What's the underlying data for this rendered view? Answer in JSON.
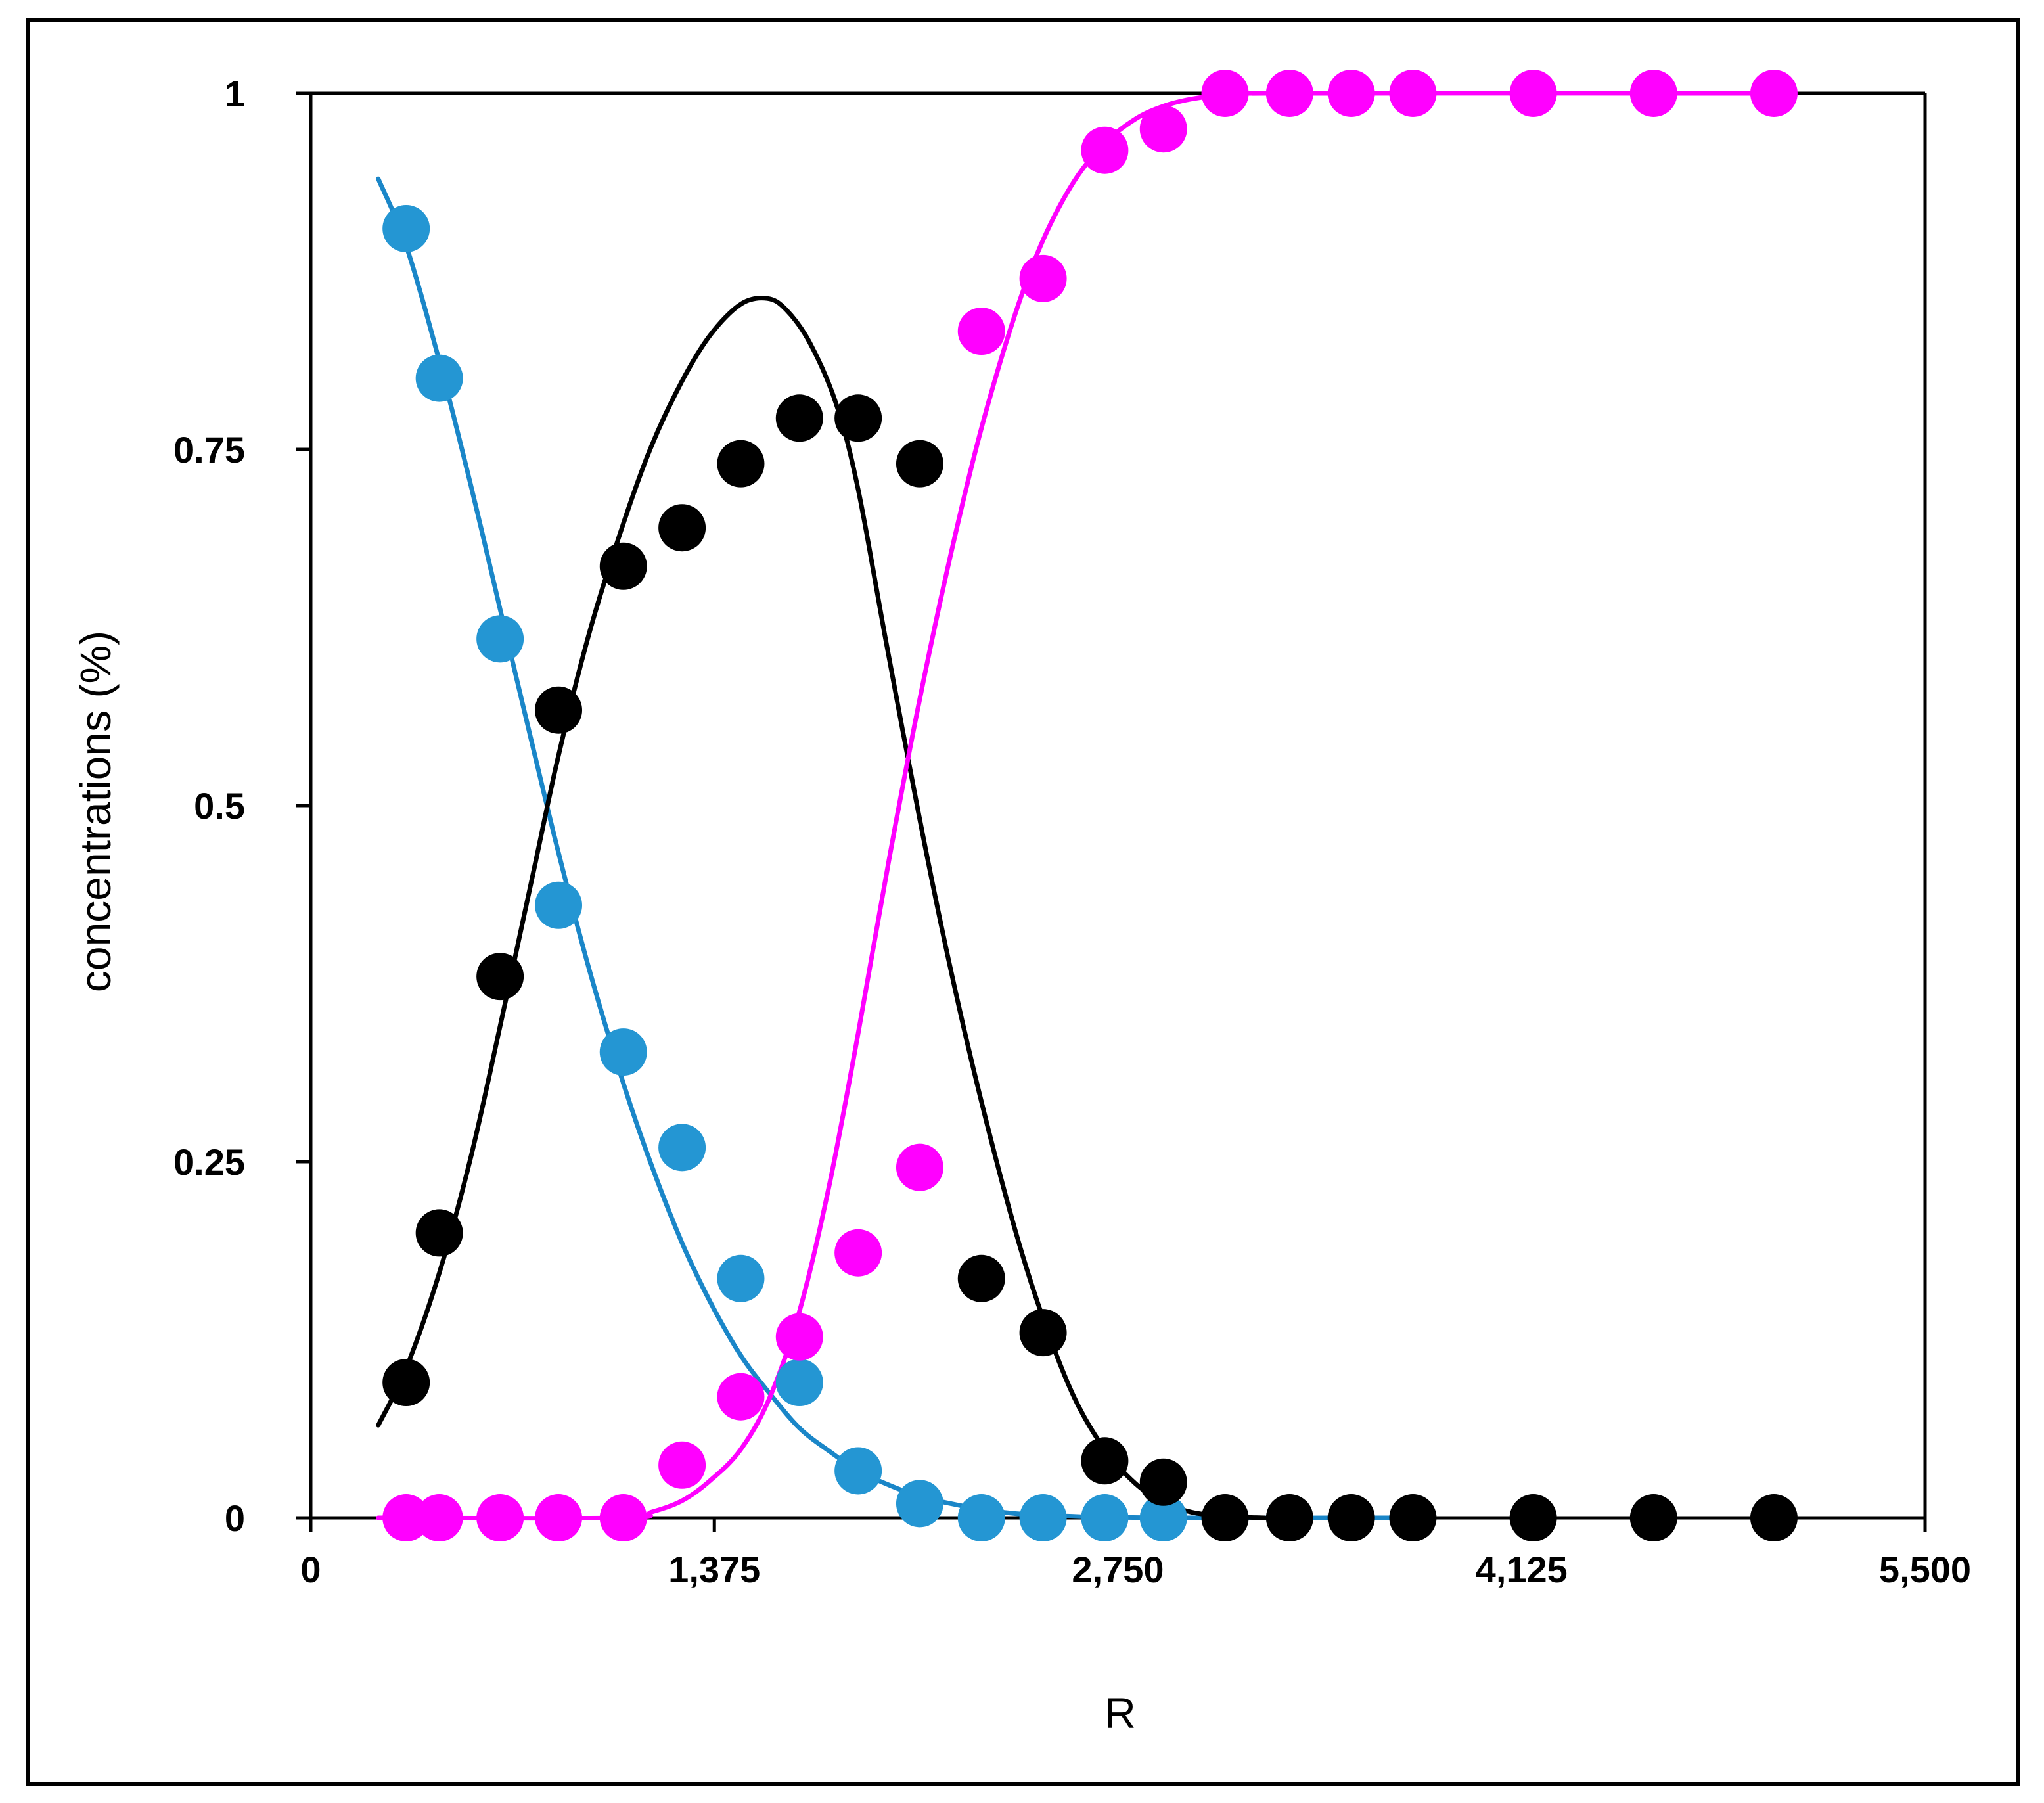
{
  "chart_data": {
    "type": "scatter",
    "title": "",
    "xlabel": "R",
    "ylabel": "concentrations (%)",
    "xlim": [
      0,
      5500
    ],
    "ylim": [
      0,
      1
    ],
    "x_ticks": [
      0,
      1375,
      2750,
      4125,
      5500
    ],
    "x_tick_labels": [
      "0",
      "1,375",
      "2,750",
      "4,125",
      "5,500"
    ],
    "y_ticks": [
      0,
      0.25,
      0.5,
      0.75,
      1
    ],
    "y_tick_labels": [
      "0",
      "0.25",
      "0.5",
      "0.75",
      "1"
    ],
    "grid": false,
    "series": [
      {
        "color": "#2496d3",
        "line_color": "#1a86c8",
        "points": [
          [
            325,
            0.905
          ],
          [
            438,
            0.8
          ],
          [
            645,
            0.617
          ],
          [
            844,
            0.43
          ],
          [
            1065,
            0.327
          ],
          [
            1265,
            0.26
          ],
          [
            1465,
            0.168
          ],
          [
            1665,
            0.095
          ],
          [
            1865,
            0.033
          ],
          [
            2075,
            0.01
          ],
          [
            2285,
            0
          ],
          [
            2495,
            0
          ],
          [
            2705,
            0
          ],
          [
            2905,
            0
          ]
        ],
        "curve": [
          [
            230,
            0.94
          ],
          [
            325,
            0.893
          ],
          [
            438,
            0.812
          ],
          [
            545,
            0.725
          ],
          [
            645,
            0.638
          ],
          [
            750,
            0.547
          ],
          [
            844,
            0.467
          ],
          [
            950,
            0.384
          ],
          [
            1065,
            0.305
          ],
          [
            1160,
            0.248
          ],
          [
            1265,
            0.193
          ],
          [
            1360,
            0.152
          ],
          [
            1465,
            0.114
          ],
          [
            1565,
            0.087
          ],
          [
            1665,
            0.063
          ],
          [
            1765,
            0.047
          ],
          [
            1865,
            0.033
          ],
          [
            1970,
            0.023
          ],
          [
            2075,
            0.015
          ],
          [
            2180,
            0.01
          ],
          [
            2285,
            0.006
          ],
          [
            2400,
            0.003
          ],
          [
            2495,
            0.002
          ],
          [
            2600,
            0.001
          ],
          [
            2705,
            0.0005
          ],
          [
            3000,
            0
          ],
          [
            3800,
            0
          ]
        ]
      },
      {
        "color": "#000000",
        "line_color": "#000000",
        "points": [
          [
            325,
            0.095
          ],
          [
            438,
            0.2
          ],
          [
            645,
            0.38
          ],
          [
            844,
            0.567
          ],
          [
            1065,
            0.668
          ],
          [
            1265,
            0.695
          ],
          [
            1465,
            0.74
          ],
          [
            1665,
            0.772
          ],
          [
            1865,
            0.772
          ],
          [
            2075,
            0.74
          ],
          [
            2285,
            0.168
          ],
          [
            2495,
            0.13
          ],
          [
            2705,
            0.04
          ],
          [
            2905,
            0.025
          ],
          [
            3115,
            0
          ],
          [
            3335,
            0
          ],
          [
            3545,
            0
          ],
          [
            3755,
            0
          ],
          [
            4165,
            0
          ],
          [
            4575,
            0
          ],
          [
            4985,
            0
          ]
        ],
        "curve": [
          [
            230,
            0.065
          ],
          [
            325,
            0.105
          ],
          [
            438,
            0.172
          ],
          [
            545,
            0.253
          ],
          [
            645,
            0.345
          ],
          [
            750,
            0.445
          ],
          [
            844,
            0.535
          ],
          [
            950,
            0.622
          ],
          [
            1065,
            0.698
          ],
          [
            1160,
            0.752
          ],
          [
            1265,
            0.798
          ],
          [
            1360,
            0.83
          ],
          [
            1465,
            0.852
          ],
          [
            1555,
            0.856
          ],
          [
            1620,
            0.848
          ],
          [
            1700,
            0.825
          ],
          [
            1790,
            0.782
          ],
          [
            1865,
            0.722
          ],
          [
            1960,
            0.615
          ],
          [
            2075,
            0.49
          ],
          [
            2180,
            0.385
          ],
          [
            2285,
            0.292
          ],
          [
            2400,
            0.202
          ],
          [
            2495,
            0.14
          ],
          [
            2600,
            0.085
          ],
          [
            2705,
            0.048
          ],
          [
            2810,
            0.024
          ],
          [
            2905,
            0.011
          ],
          [
            3000,
            0.004
          ],
          [
            3115,
            0.001
          ],
          [
            3250,
            0
          ]
        ]
      },
      {
        "color": "#ff00ff",
        "line_color": "#ff00ff",
        "points": [
          [
            325,
            0
          ],
          [
            438,
            0
          ],
          [
            645,
            0
          ],
          [
            844,
            0
          ],
          [
            1065,
            0
          ],
          [
            1265,
            0.037
          ],
          [
            1465,
            0.085
          ],
          [
            1665,
            0.127
          ],
          [
            1865,
            0.186
          ],
          [
            2075,
            0.246
          ],
          [
            2285,
            0.833
          ],
          [
            2495,
            0.87
          ],
          [
            2705,
            0.96
          ],
          [
            2905,
            0.975
          ],
          [
            3115,
            1
          ],
          [
            3335,
            1
          ],
          [
            3545,
            1
          ],
          [
            3755,
            1
          ],
          [
            4165,
            1
          ],
          [
            4575,
            1
          ],
          [
            4985,
            1
          ]
        ],
        "curve": [
          [
            230,
            0
          ],
          [
            1065,
            0
          ],
          [
            1160,
            0.004
          ],
          [
            1265,
            0.012
          ],
          [
            1360,
            0.026
          ],
          [
            1465,
            0.048
          ],
          [
            1565,
            0.085
          ],
          [
            1665,
            0.145
          ],
          [
            1765,
            0.232
          ],
          [
            1865,
            0.34
          ],
          [
            1970,
            0.462
          ],
          [
            2075,
            0.575
          ],
          [
            2180,
            0.676
          ],
          [
            2285,
            0.765
          ],
          [
            2400,
            0.845
          ],
          [
            2495,
            0.897
          ],
          [
            2600,
            0.938
          ],
          [
            2705,
            0.965
          ],
          [
            2810,
            0.982
          ],
          [
            2905,
            0.991
          ],
          [
            3000,
            0.996
          ],
          [
            3115,
            0.999
          ],
          [
            3250,
            1
          ],
          [
            4985,
            1
          ]
        ]
      }
    ]
  }
}
